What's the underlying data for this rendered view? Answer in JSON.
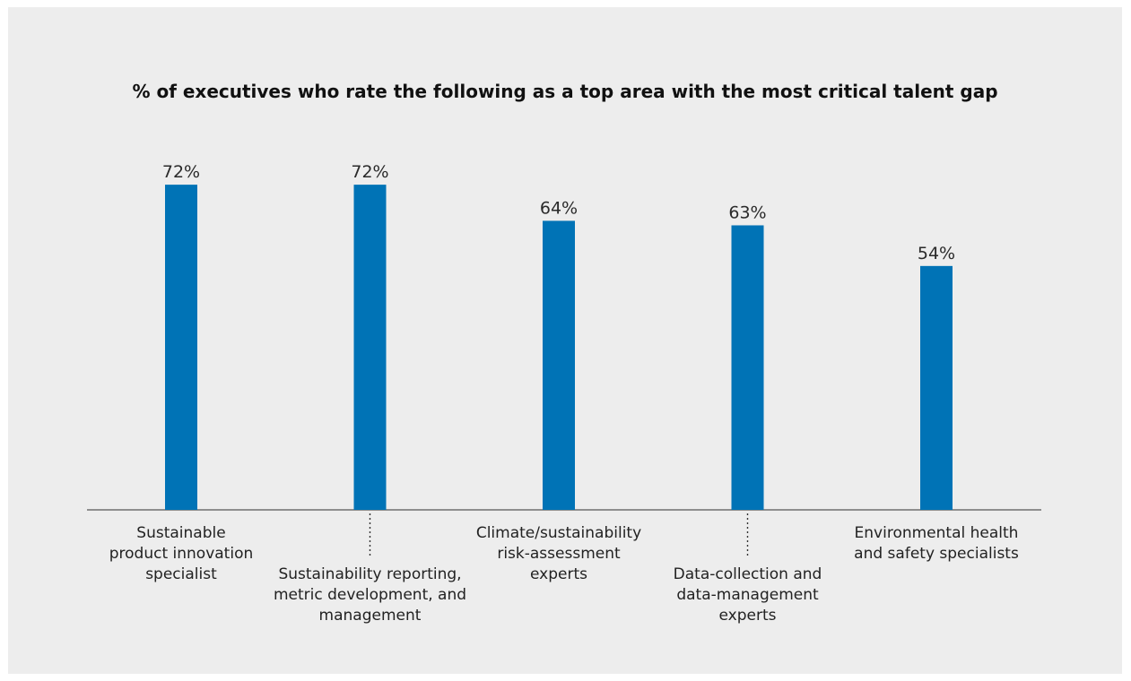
{
  "chart_data": {
    "type": "bar",
    "title": "% of executives who rate the following as a top area with the most critical talent gap",
    "xlabel": "",
    "ylabel": "",
    "ylim": [
      0,
      100
    ],
    "grid": false,
    "legend": "none",
    "bar_color": "#0073b6",
    "categories": [
      "Sustainable product innovation specialist",
      "Sustainability reporting, metric development, and management",
      "Climate/sustainability risk-assessment experts",
      "Data-collection and data-management experts",
      "Environmental health and safety specialists"
    ],
    "category_lines": [
      [
        "Sustainable",
        "product innovation",
        "specialist"
      ],
      [
        "Sustainability reporting,",
        "metric development, and",
        "management"
      ],
      [
        "Climate/sustainability",
        "risk-assessment",
        "experts"
      ],
      [
        "Data-collection and",
        "data-management",
        "experts"
      ],
      [
        "Environmental health",
        "and safety specialists"
      ]
    ],
    "values": [
      72,
      72,
      64,
      63,
      54
    ],
    "value_labels": [
      "72%",
      "72%",
      "64%",
      "63%",
      "54%"
    ]
  }
}
